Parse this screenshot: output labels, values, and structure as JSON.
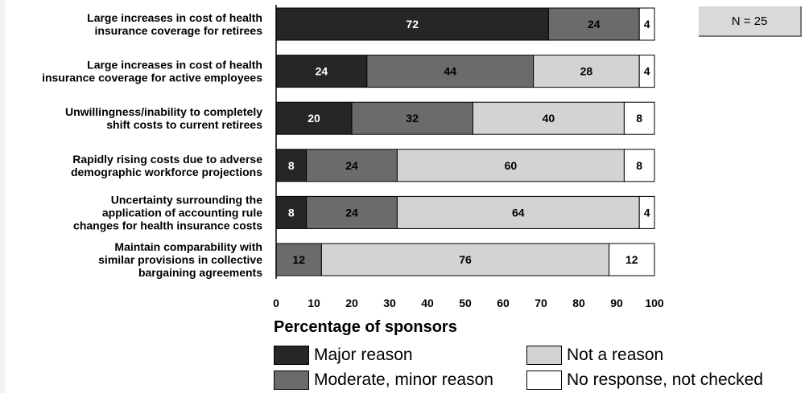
{
  "n_label": "N = 25",
  "chart_data": {
    "type": "bar",
    "orientation": "horizontal",
    "stacked": true,
    "categories": [
      [
        "Large increases in cost of health",
        "insurance coverage for retirees"
      ],
      [
        "Large increases in cost of health",
        "insurance coverage for active employees"
      ],
      [
        "Unwillingness/inability to completely",
        "shift costs to current retirees"
      ],
      [
        "Rapidly rising costs due to adverse",
        "demographic workforce projections"
      ],
      [
        "Uncertainty surrounding the",
        "application of accounting rule",
        "changes for health insurance costs"
      ],
      [
        "Maintain comparability with",
        "similar provisions in collective",
        "bargaining agreements"
      ]
    ],
    "series": [
      {
        "name": "Major reason",
        "color": "#262626",
        "label_color": "#ffffff",
        "values": [
          72,
          24,
          20,
          8,
          8,
          0
        ]
      },
      {
        "name": "Moderate, minor reason",
        "color": "#6b6b6b",
        "label_color": "#000000",
        "values": [
          24,
          44,
          32,
          24,
          24,
          12
        ]
      },
      {
        "name": "Not a reason",
        "color": "#d3d3d3",
        "label_color": "#000000",
        "values": [
          0,
          28,
          40,
          60,
          64,
          76
        ]
      },
      {
        "name": "No response, not checked",
        "color": "#ffffff",
        "label_color": "#000000",
        "values": [
          4,
          4,
          8,
          8,
          4,
          12
        ]
      }
    ],
    "xlim": [
      0,
      100
    ],
    "xticks": [
      0,
      10,
      20,
      30,
      40,
      50,
      60,
      70,
      80,
      90,
      100
    ],
    "xlabel": "Percentage of sponsors",
    "grid": false,
    "legend_position": "bottom"
  }
}
